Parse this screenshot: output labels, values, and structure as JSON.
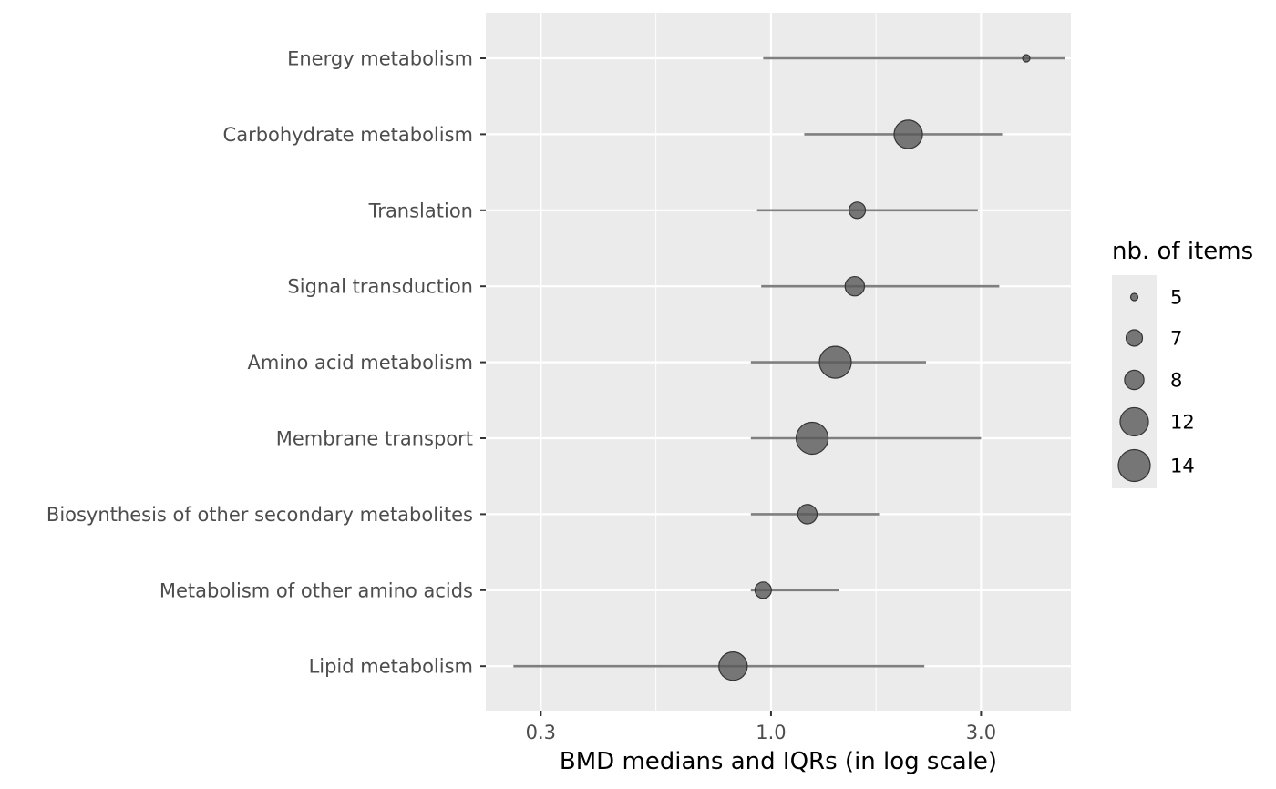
{
  "chart_data": {
    "type": "scatter",
    "xlabel": "BMD medians and IQRs (in log scale)",
    "x_scale": "log",
    "xlim": [
      0.225,
      4.8
    ],
    "x_ticks": [
      {
        "value": 0.3,
        "label": "0.3"
      },
      {
        "value": 1.0,
        "label": "1.0"
      },
      {
        "value": 3.0,
        "label": "3.0"
      }
    ],
    "x_minor_gridlines": [
      0.5477,
      1.7321
    ],
    "categories": [
      "Energy metabolism",
      "Carbohydrate metabolism",
      "Translation",
      "Signal transduction",
      "Amino acid metabolism",
      "Membrane transport",
      "Biosynthesis of other secondary metabolites",
      "Metabolism of other amino acids",
      "Lipid metabolism"
    ],
    "points": [
      {
        "category": "Energy metabolism",
        "median": 3.8,
        "q1": 0.96,
        "q3": 4.65,
        "n_items": 5
      },
      {
        "category": "Carbohydrate metabolism",
        "median": 2.05,
        "q1": 1.19,
        "q3": 3.35,
        "n_items": 12
      },
      {
        "category": "Translation",
        "median": 1.57,
        "q1": 0.93,
        "q3": 2.95,
        "n_items": 7
      },
      {
        "category": "Signal transduction",
        "median": 1.55,
        "q1": 0.95,
        "q3": 3.3,
        "n_items": 8
      },
      {
        "category": "Amino acid metabolism",
        "median": 1.4,
        "q1": 0.9,
        "q3": 2.25,
        "n_items": 14
      },
      {
        "category": "Membrane transport",
        "median": 1.24,
        "q1": 0.9,
        "q3": 3.0,
        "n_items": 14
      },
      {
        "category": "Biosynthesis of other secondary metabolites",
        "median": 1.21,
        "q1": 0.9,
        "q3": 1.76,
        "n_items": 8
      },
      {
        "category": "Metabolism of other amino acids",
        "median": 0.96,
        "q1": 0.9,
        "q3": 1.43,
        "n_items": 7
      },
      {
        "category": "Lipid metabolism",
        "median": 0.82,
        "q1": 0.26,
        "q3": 2.23,
        "n_items": 12
      }
    ],
    "size_legend": {
      "title": "nb. of items",
      "entries": [
        {
          "value": 5,
          "label": "5"
        },
        {
          "value": 7,
          "label": "7"
        },
        {
          "value": 8,
          "label": "8"
        },
        {
          "value": 12,
          "label": "12"
        },
        {
          "value": 14,
          "label": "14"
        }
      ],
      "placement": "right"
    },
    "grid": true,
    "colors": {
      "panel_background": "#ebebeb",
      "grid_line": "#ffffff",
      "segment": "#7f7f7f",
      "point_fill": "#595959",
      "point_stroke": "#333333",
      "text_axis": "#4d4d4d",
      "text_title": "#000000"
    }
  }
}
